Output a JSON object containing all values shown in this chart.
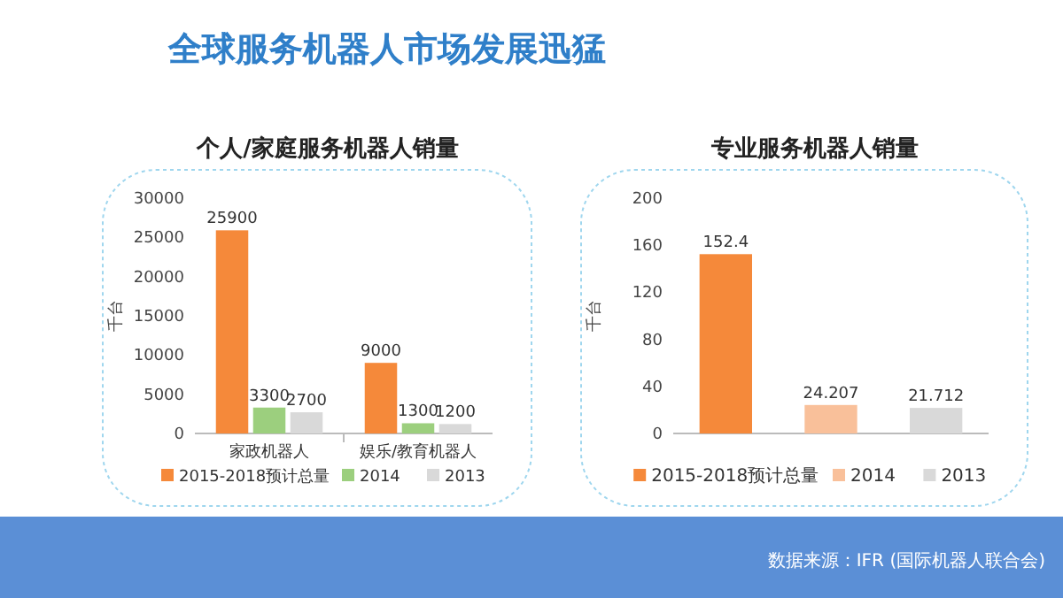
{
  "chart_data": [
    {
      "type": "bar",
      "title": "个人/家庭服务机器人销量",
      "ylabel": "千台",
      "categories": [
        "家政机器人",
        "娱乐/教育机器人"
      ],
      "series": [
        {
          "name": "2015-2018预计总量",
          "color": "#f5893a",
          "values": [
            25900,
            9000
          ]
        },
        {
          "name": "2014",
          "color": "#9ccf7e",
          "values": [
            3300,
            1300
          ]
        },
        {
          "name": "2013",
          "color": "#d9d9d9",
          "values": [
            2700,
            1200
          ]
        }
      ],
      "ylim": [
        0,
        30000
      ],
      "yticks": [
        0,
        5000,
        10000,
        15000,
        20000,
        25000,
        30000
      ],
      "data_labels": true,
      "legend": "bottom",
      "annotations": [
        "全球服务机器人市场发展迅猛"
      ]
    },
    {
      "type": "bar",
      "title": "专业服务机器人销量",
      "ylabel": "千台",
      "categories": [
        null,
        null,
        null
      ],
      "series": [
        {
          "name": "2015-2018预计总量",
          "color": "#f5893a",
          "values": [
            152.4,
            null,
            null
          ]
        },
        {
          "name": "2014",
          "color": "#f9c09a",
          "values": [
            null,
            24.207,
            null
          ]
        },
        {
          "name": "2013",
          "color": "#d9d9d9",
          "values": [
            null,
            null,
            21.712
          ]
        }
      ],
      "ylim": [
        0,
        200
      ],
      "yticks": [
        0,
        40,
        80,
        120,
        160,
        200
      ],
      "data_labels": true,
      "legend": "bottom",
      "annotations": [
        "数据来源：IFR (国际机器人联合会)"
      ]
    }
  ]
}
